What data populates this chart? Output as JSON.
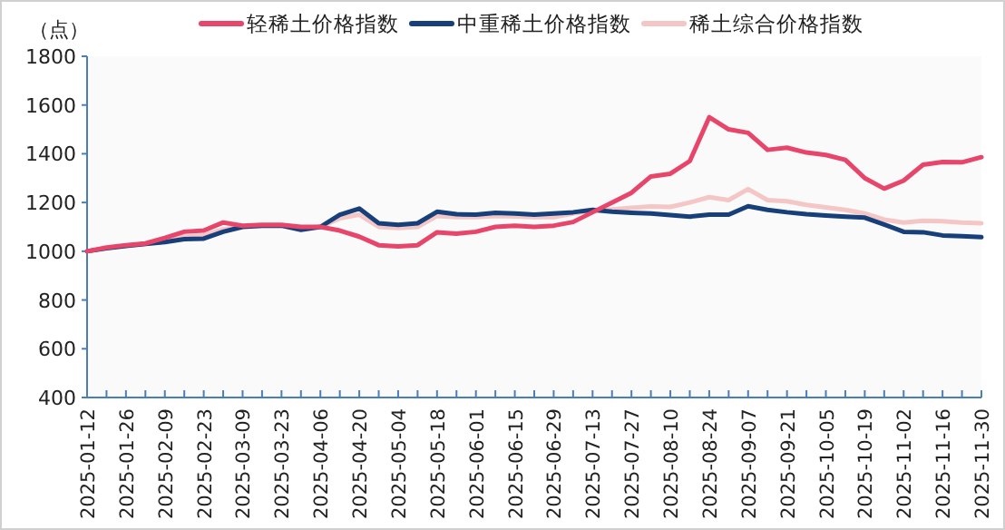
{
  "chart_data": {
    "type": "line",
    "ylabel": "（点）",
    "legend": "top",
    "marker": "none",
    "line_style": "solid",
    "ylim": [
      400,
      1800
    ],
    "yticks": [
      400,
      600,
      800,
      1000,
      1200,
      1400,
      1600,
      1800
    ],
    "xlim": [
      "2025-01-12",
      "2025-11-30"
    ],
    "xticks": [
      "2025-01-12",
      {
        "value": "2025-01-19",
        "label": null
      },
      "2025-01-26",
      {
        "value": "2025-02-02",
        "label": null
      },
      "2025-02-09",
      {
        "value": "2025-02-16",
        "label": null
      },
      "2025-02-23",
      {
        "value": "2025-03-02",
        "label": null
      },
      "2025-03-09",
      {
        "value": "2025-03-16",
        "label": null
      },
      "2025-03-23",
      {
        "value": "2025-03-30",
        "label": null
      },
      "2025-04-06",
      {
        "value": "2025-04-13",
        "label": null
      },
      "2025-04-20",
      {
        "value": "2025-04-27",
        "label": null
      },
      "2025-05-04",
      {
        "value": "2025-05-11",
        "label": null
      },
      "2025-05-18",
      {
        "value": "2025-05-25",
        "label": null
      },
      "2025-06-01",
      {
        "value": "2025-06-08",
        "label": null
      },
      "2025-06-15",
      {
        "value": "2025-06-22",
        "label": null
      },
      "2025-06-29",
      {
        "value": "2025-07-06",
        "label": null
      },
      "2025-07-13",
      {
        "value": "2025-07-20",
        "label": null
      },
      "2025-07-27",
      {
        "value": "2025-08-03",
        "label": null
      },
      "2025-08-10",
      {
        "value": "2025-08-17",
        "label": null
      },
      "2025-08-24",
      {
        "value": "2025-08-31",
        "label": null
      },
      "2025-09-07",
      {
        "value": "2025-09-14",
        "label": null
      },
      "2025-09-21",
      {
        "value": "2025-09-28",
        "label": null
      },
      "2025-10-05",
      {
        "value": "2025-10-12",
        "label": null
      },
      "2025-10-19",
      {
        "value": "2025-10-26",
        "label": null
      },
      "2025-11-02",
      {
        "value": "2025-11-09",
        "label": null
      },
      "2025-11-16",
      {
        "value": "2025-11-23",
        "label": null
      },
      "2025-11-30"
    ],
    "x": [
      "2025-01-12",
      "2025-01-19",
      "2025-01-26",
      "2025-02-02",
      "2025-02-09",
      "2025-02-16",
      "2025-02-23",
      "2025-03-02",
      "2025-03-09",
      "2025-03-16",
      "2025-03-23",
      "2025-03-30",
      "2025-04-06",
      "2025-04-13",
      "2025-04-20",
      "2025-04-27",
      "2025-05-04",
      "2025-05-11",
      "2025-05-18",
      "2025-05-25",
      "2025-06-01",
      "2025-06-08",
      "2025-06-15",
      "2025-06-22",
      "2025-06-29",
      "2025-07-06",
      "2025-07-13",
      "2025-07-20",
      "2025-07-27",
      "2025-08-03",
      "2025-08-10",
      "2025-08-17",
      "2025-08-24",
      "2025-08-31",
      "2025-09-07",
      "2025-09-14",
      "2025-09-21",
      "2025-09-28",
      "2025-10-05",
      "2025-10-12",
      "2025-10-19",
      "2025-10-26",
      "2025-11-02",
      "2025-11-09",
      "2025-11-16",
      "2025-11-23",
      "2025-11-30"
    ],
    "series": [
      {
        "name": "轻稀土价格指数",
        "color": "#e8456b",
        "values": [
          1000,
          1015,
          1025,
          1032,
          1055,
          1080,
          1085,
          1118,
          1105,
          1108,
          1108,
          1100,
          1100,
          1085,
          1060,
          1025,
          1020,
          1025,
          1078,
          1072,
          1080,
          1100,
          1105,
          1100,
          1105,
          1120,
          1160,
          1200,
          1240,
          1307,
          1318,
          1370,
          1550,
          1500,
          1486,
          1416,
          1425,
          1405,
          1395,
          1375,
          1300,
          1257,
          1290,
          1355,
          1366,
          1365,
          1386
        ]
      },
      {
        "name": "中重稀土价格指数",
        "color": "#17407a",
        "values": [
          1000,
          1012,
          1022,
          1030,
          1038,
          1050,
          1052,
          1080,
          1100,
          1105,
          1105,
          1088,
          1100,
          1150,
          1175,
          1115,
          1108,
          1115,
          1162,
          1152,
          1150,
          1158,
          1155,
          1150,
          1155,
          1160,
          1170,
          1162,
          1158,
          1155,
          1148,
          1142,
          1150,
          1150,
          1185,
          1170,
          1160,
          1152,
          1147,
          1142,
          1138,
          1110,
          1080,
          1078,
          1065,
          1062,
          1058
        ]
      },
      {
        "name": "稀土综合价格指数",
        "color": "#f5c6c6",
        "values": [
          1000,
          1013,
          1023,
          1030,
          1040,
          1060,
          1065,
          1090,
          1102,
          1105,
          1105,
          1095,
          1100,
          1135,
          1150,
          1100,
          1095,
          1100,
          1145,
          1140,
          1140,
          1145,
          1143,
          1140,
          1140,
          1155,
          1168,
          1172,
          1178,
          1184,
          1182,
          1200,
          1222,
          1210,
          1255,
          1210,
          1205,
          1190,
          1180,
          1170,
          1155,
          1130,
          1118,
          1125,
          1123,
          1118,
          1115
        ]
      }
    ]
  }
}
